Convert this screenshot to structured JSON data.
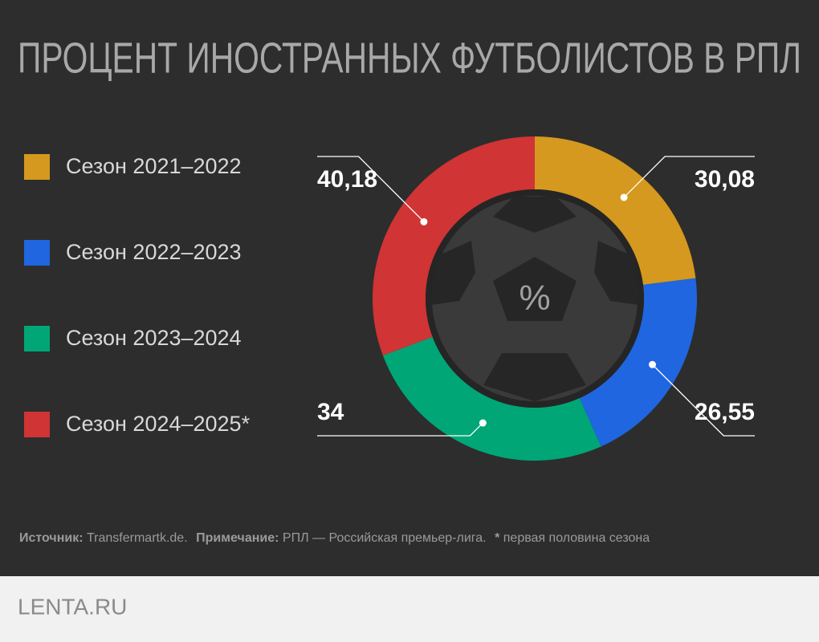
{
  "chart_data": {
    "type": "donut",
    "title": "ПРОЦЕНТ ИНОСТРАННЫХ ФУТБОЛИСТОВ В РПЛ",
    "center_label": "%",
    "series": [
      {
        "name": "Сезон 2021–2022",
        "color": "#d4991e",
        "values": [
          30.08
        ],
        "value_labels": [
          "30,08"
        ]
      },
      {
        "name": "Сезон 2022–2023",
        "color": "#1f66e0",
        "values": [
          26.55
        ],
        "value_labels": [
          "26,55"
        ]
      },
      {
        "name": "Сезон 2023–2024",
        "color": "#00a676",
        "values": [
          34
        ],
        "value_labels": [
          "34"
        ]
      },
      {
        "name": "Сезон 2024–2025*",
        "color": "#d03434",
        "values": [
          40.18
        ],
        "value_labels": [
          "40,18"
        ]
      }
    ],
    "source": {
      "label": "Источник:",
      "text": "Transfermartk.de.",
      "note_label": "Примечание:",
      "note": "РПЛ — Российская премьер-лига.",
      "star": "*",
      "star_note": "первая половина сезона"
    },
    "logo": "LENTA.RU"
  }
}
